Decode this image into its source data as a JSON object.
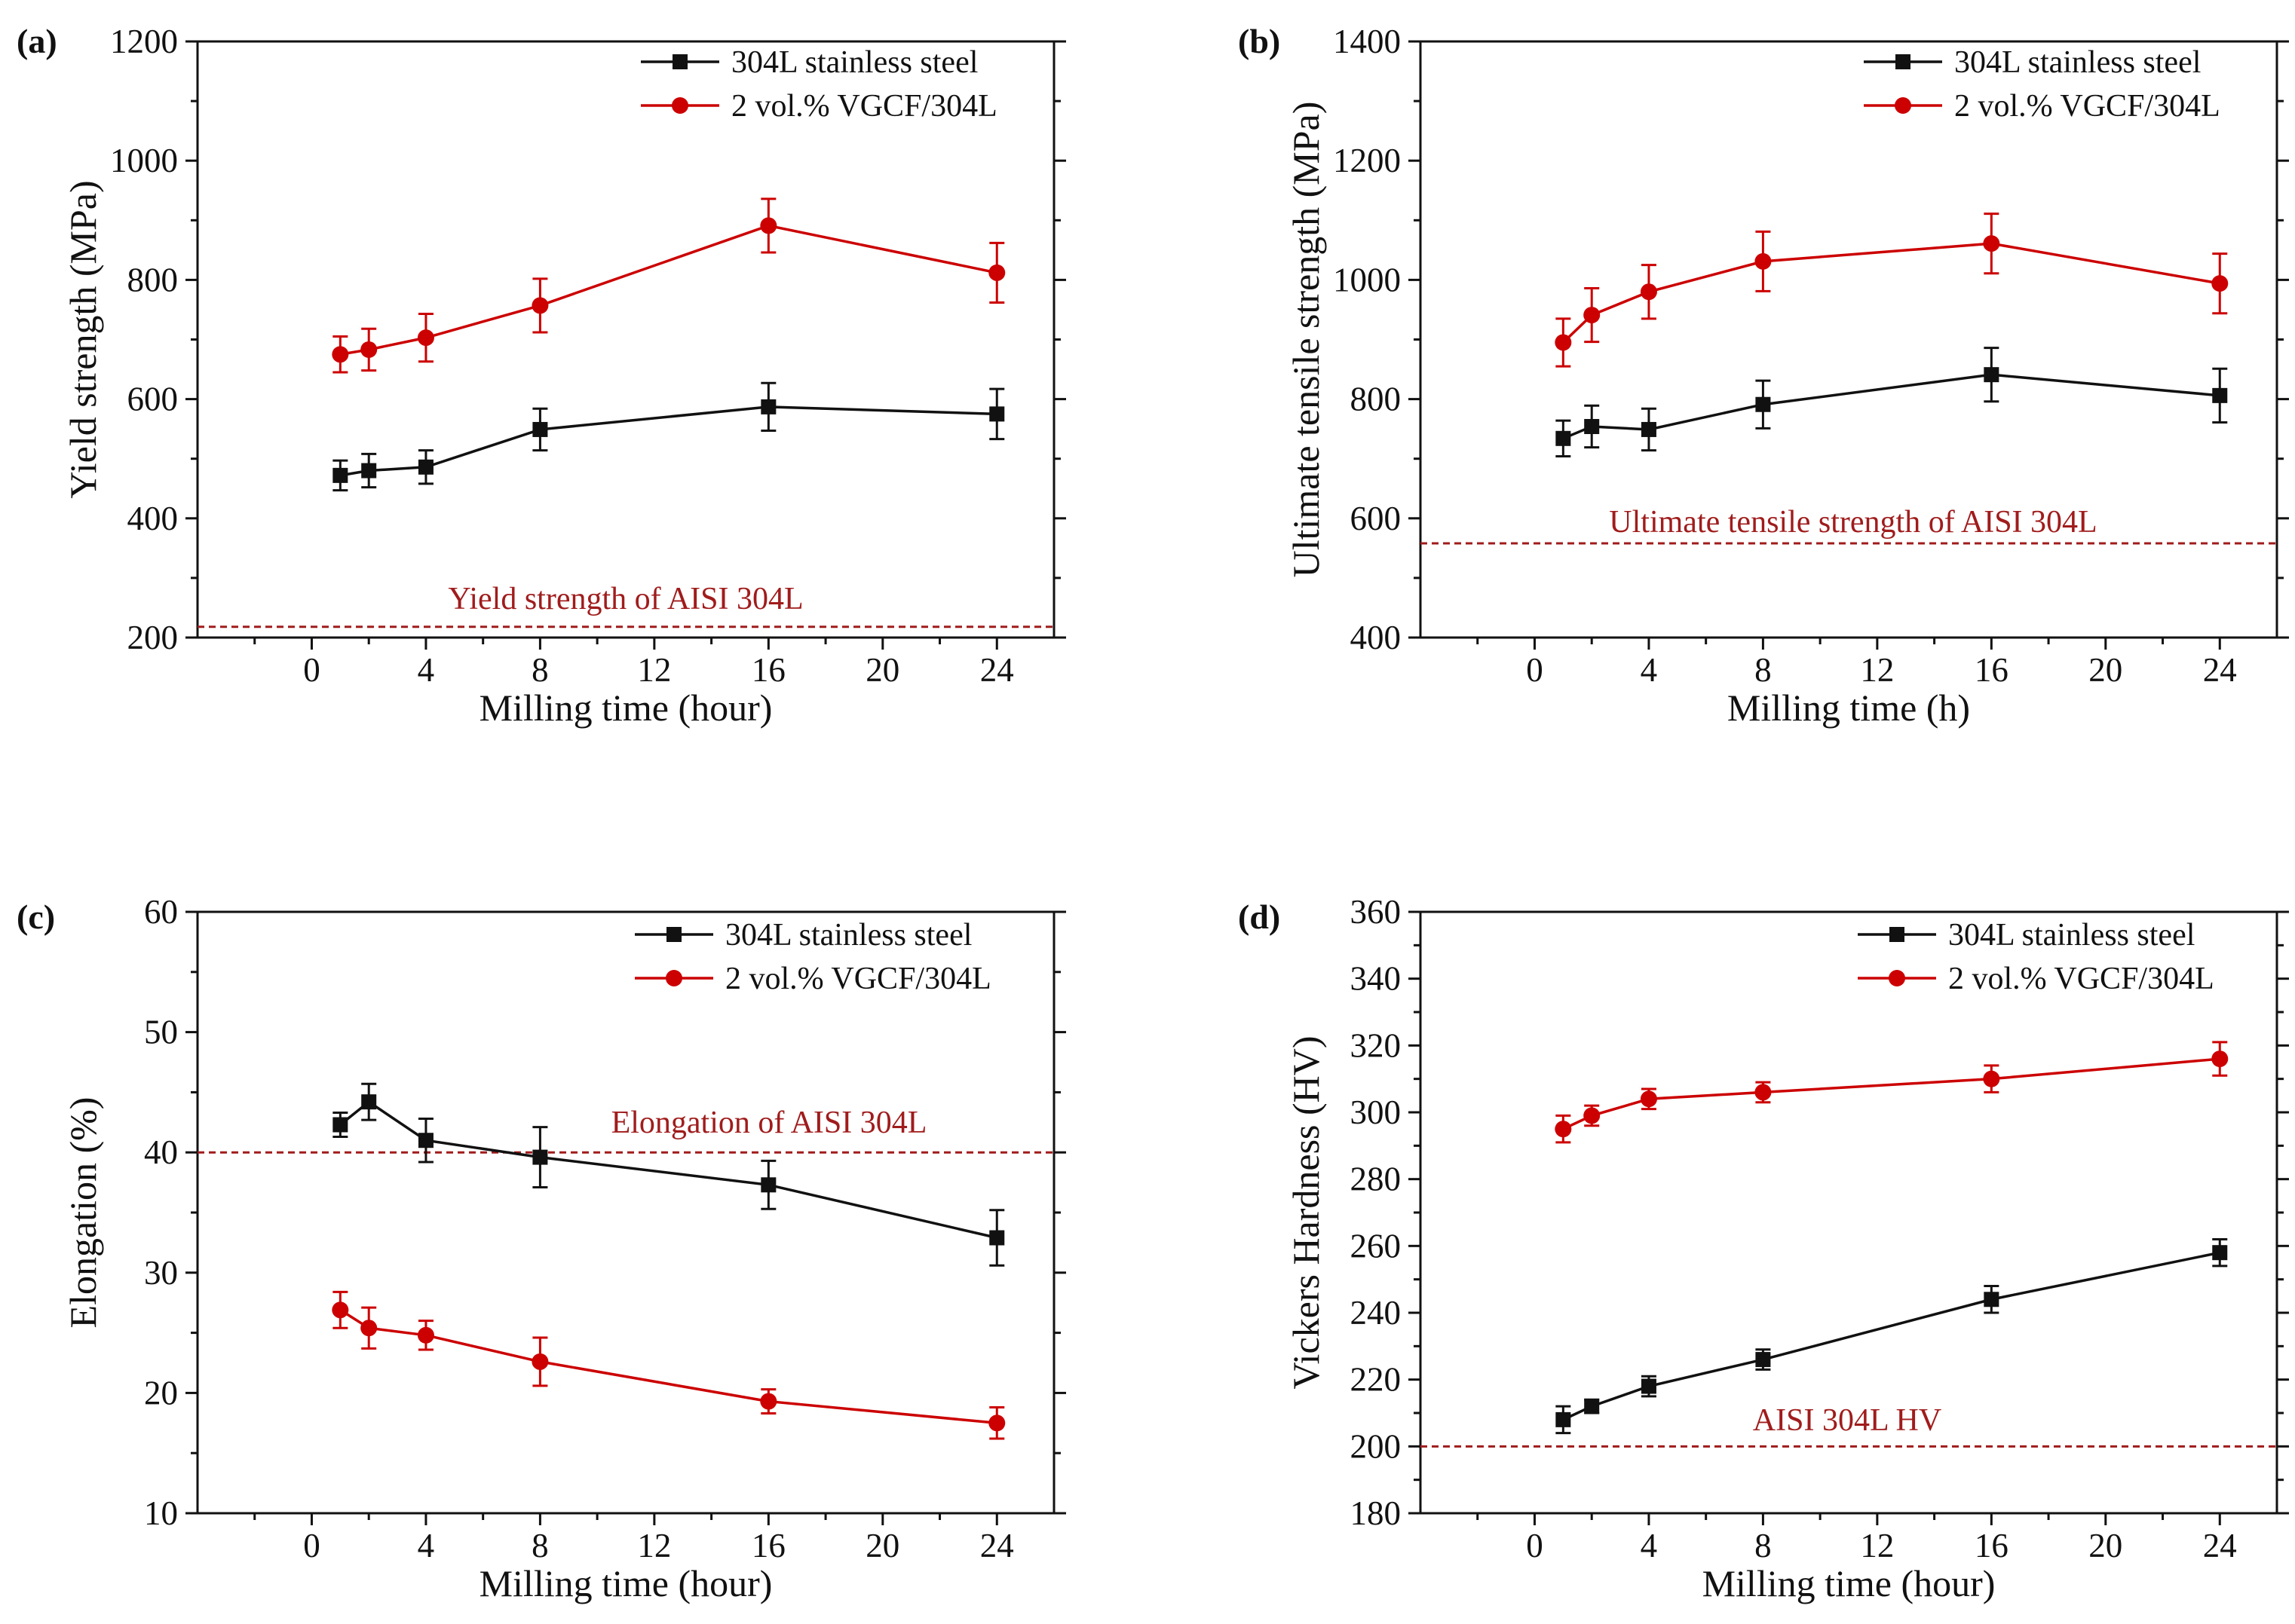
{
  "colors": {
    "black_series": "#111111",
    "red_series": "#cc0000",
    "reference": "#a01c1c",
    "axis": "#111111"
  },
  "legend": {
    "series1": "304L stainless steel",
    "series2": "2 vol.% VGCF/304L"
  },
  "chart_data": [
    {
      "id": "a",
      "panel_label": "(a)",
      "type": "line",
      "xlabel": "Milling time (hour)",
      "ylabel": "Yield strength (MPa)",
      "xlim": [
        -4,
        26
      ],
      "ylim": [
        200,
        1200
      ],
      "xticks": [
        0,
        4,
        8,
        12,
        16,
        20,
        24
      ],
      "yticks": [
        200,
        400,
        600,
        800,
        1000,
        1200
      ],
      "x": [
        1,
        2,
        4,
        8,
        16,
        24
      ],
      "series": [
        {
          "name": "304L stainless steel",
          "values": [
            472,
            480,
            486,
            549,
            587,
            575
          ],
          "errors": [
            25,
            28,
            28,
            35,
            40,
            42
          ]
        },
        {
          "name": "2 vol.% VGCF/304L",
          "values": [
            675,
            683,
            703,
            757,
            891,
            812
          ],
          "errors": [
            30,
            35,
            40,
            45,
            45,
            50
          ]
        }
      ],
      "reference": {
        "label": "Yield strength of AISI 304L",
        "value": 218
      },
      "legend_position": "top-right"
    },
    {
      "id": "b",
      "panel_label": "(b)",
      "type": "line",
      "xlabel": "Milling time (h)",
      "ylabel": "Ultimate tensile strength (MPa)",
      "xlim": [
        -4,
        26
      ],
      "ylim": [
        400,
        1400
      ],
      "xticks": [
        0,
        4,
        8,
        12,
        16,
        20,
        24
      ],
      "yticks": [
        400,
        600,
        800,
        1000,
        1200,
        1400
      ],
      "x": [
        1,
        2,
        4,
        8,
        16,
        24
      ],
      "series": [
        {
          "name": "304L stainless steel",
          "values": [
            734,
            754,
            749,
            791,
            841,
            806
          ],
          "errors": [
            30,
            35,
            35,
            40,
            45,
            45
          ]
        },
        {
          "name": "2 vol.% VGCF/304L",
          "values": [
            895,
            941,
            980,
            1031,
            1061,
            994
          ],
          "errors": [
            40,
            45,
            45,
            50,
            50,
            50
          ]
        }
      ],
      "reference": {
        "label": "Ultimate tensile strength of AISI 304L",
        "value": 558
      },
      "legend_position": "top-right"
    },
    {
      "id": "c",
      "panel_label": "(c)",
      "type": "line",
      "xlabel": "Milling time (hour)",
      "ylabel": "Elongation (%)",
      "xlim": [
        -4,
        26
      ],
      "ylim": [
        10,
        60
      ],
      "xticks": [
        0,
        4,
        8,
        12,
        16,
        20,
        24
      ],
      "yticks": [
        10,
        20,
        30,
        40,
        50,
        60
      ],
      "x": [
        1,
        2,
        4,
        8,
        16,
        24
      ],
      "series": [
        {
          "name": "304L stainless steel",
          "values": [
            42.3,
            44.2,
            41.0,
            39.6,
            37.3,
            32.9
          ],
          "errors": [
            1.0,
            1.5,
            1.8,
            2.5,
            2.0,
            2.3
          ]
        },
        {
          "name": "2 vol.% VGCF/304L",
          "values": [
            26.9,
            25.4,
            24.8,
            22.6,
            19.3,
            17.5
          ],
          "errors": [
            1.5,
            1.7,
            1.2,
            2.0,
            1.0,
            1.3
          ]
        }
      ],
      "reference": {
        "label": "Elongation of AISI 304L",
        "value": 40
      },
      "legend_position": "top-right"
    },
    {
      "id": "d",
      "panel_label": "(d)",
      "type": "line",
      "xlabel": "Milling time (hour)",
      "ylabel": "Vickers Hardness (HV)",
      "xlim": [
        -4,
        26
      ],
      "ylim": [
        180,
        360
      ],
      "xticks": [
        0,
        4,
        8,
        12,
        16,
        20,
        24
      ],
      "yticks": [
        180,
        200,
        220,
        240,
        260,
        280,
        300,
        320,
        340,
        360
      ],
      "x": [
        1,
        2,
        4,
        8,
        16,
        24
      ],
      "series": [
        {
          "name": "304L stainless steel",
          "values": [
            208,
            212,
            218,
            226,
            244,
            258
          ],
          "errors": [
            4,
            2,
            3,
            3,
            4,
            4
          ]
        },
        {
          "name": "2 vol.% VGCF/304L",
          "values": [
            295,
            299,
            304,
            306,
            310,
            316
          ],
          "errors": [
            4,
            3,
            3,
            3,
            4,
            5
          ]
        }
      ],
      "reference": {
        "label": "AISI 304L HV",
        "value": 200
      },
      "legend_position": "top-right"
    }
  ]
}
